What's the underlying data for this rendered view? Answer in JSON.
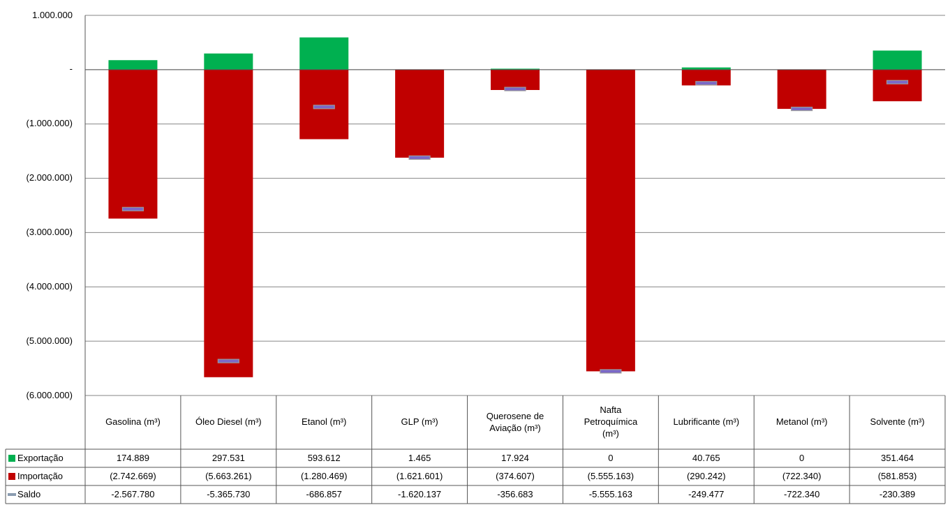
{
  "chart_data": {
    "type": "bar",
    "categories": [
      "Gasolina (m³)",
      "Óleo Diesel (m³)",
      "Etanol (m³)",
      "GLP (m³)",
      "Querosene de Aviação (m³)",
      "Nafta Petroquímica (m³)",
      "Lubrificante (m³)",
      "Metanol (m³)",
      "Solvente (m³)"
    ],
    "series": [
      {
        "name": "Exportação",
        "kind": "bar",
        "color": "#00b050",
        "values": [
          174889,
          297531,
          593612,
          1465,
          17924,
          0,
          40765,
          0,
          351464
        ],
        "value_labels": [
          "174.889",
          "297.531",
          "593.612",
          "1.465",
          "17.924",
          "0",
          "40.765",
          "0",
          "351.464"
        ]
      },
      {
        "name": "Importação",
        "kind": "bar",
        "color": "#c00000",
        "values": [
          -2742669,
          -5663261,
          -1280469,
          -1621601,
          -374607,
          -5555163,
          -290242,
          -722340,
          -581853
        ],
        "value_labels": [
          "(2.742.669)",
          "(5.663.261)",
          "(1.280.469)",
          "(1.621.601)",
          "(374.607)",
          "(5.555.163)",
          "(290.242)",
          "(722.340)",
          "(581.853)"
        ]
      },
      {
        "name": "Saldo",
        "kind": "dash",
        "color": "#7b68c8",
        "values": [
          -2567780,
          -5365730,
          -686857,
          -1620137,
          -356683,
          -5555163,
          -249477,
          -722340,
          -230389
        ],
        "value_labels": [
          "-2.567.780",
          "-5.365.730",
          "-686.857",
          "-1.620.137",
          "-356.683",
          "-5.555.163",
          "-249.477",
          "-722.340",
          "-230.389"
        ]
      }
    ],
    "ylim": [
      -6000000,
      1000000
    ],
    "yticks": [
      {
        "value": 1000000,
        "label": "1.000.000"
      },
      {
        "value": 0,
        "label": "-"
      },
      {
        "value": -1000000,
        "label": "(1.000.000)"
      },
      {
        "value": -2000000,
        "label": "(2.000.000)"
      },
      {
        "value": -3000000,
        "label": "(3.000.000)"
      },
      {
        "value": -4000000,
        "label": "(4.000.000)"
      },
      {
        "value": -5000000,
        "label": "(5.000.000)"
      },
      {
        "value": -6000000,
        "label": "(6.000.000)"
      }
    ],
    "grid": true
  }
}
